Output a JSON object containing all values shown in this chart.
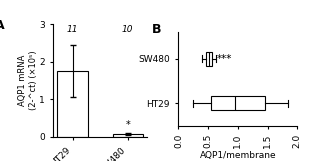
{
  "panel_A": {
    "categories": [
      "HT29",
      "SW480"
    ],
    "bar_means": [
      1.75,
      0.07
    ],
    "bar_errors": [
      0.7,
      0.03
    ],
    "bar_color": "#ffffff",
    "bar_edgecolor": "#000000",
    "ylim": [
      0,
      3
    ],
    "yticks": [
      0,
      1,
      2,
      3
    ],
    "ylabel": "AQP1 mRNA\n(2-^¹ct) (×10⁵)",
    "n_labels": [
      "11",
      "10"
    ],
    "sig_label": "*",
    "title": "A"
  },
  "panel_B": {
    "categories_ordered": [
      "SW480",
      "HT29"
    ],
    "box_stats": [
      {
        "label": "SW480",
        "med": 0.52,
        "q1": 0.47,
        "q3": 0.57,
        "whislo": 0.4,
        "whishi": 0.63
      },
      {
        "label": "HT29",
        "med": 0.95,
        "q1": 0.55,
        "q3": 1.45,
        "whislo": 0.25,
        "whishi": 1.85
      }
    ],
    "positions": [
      1,
      0
    ],
    "xlim": [
      0,
      2.0
    ],
    "xticks": [
      0.0,
      0.5,
      1.0,
      1.5,
      2.0
    ],
    "xlabel": "AQP1/membrane",
    "sig_label": "***",
    "sig_pos_x": 0.65,
    "sig_pos_y": 1,
    "title": "B"
  },
  "bg_color": "#ffffff",
  "text_color": "#000000"
}
